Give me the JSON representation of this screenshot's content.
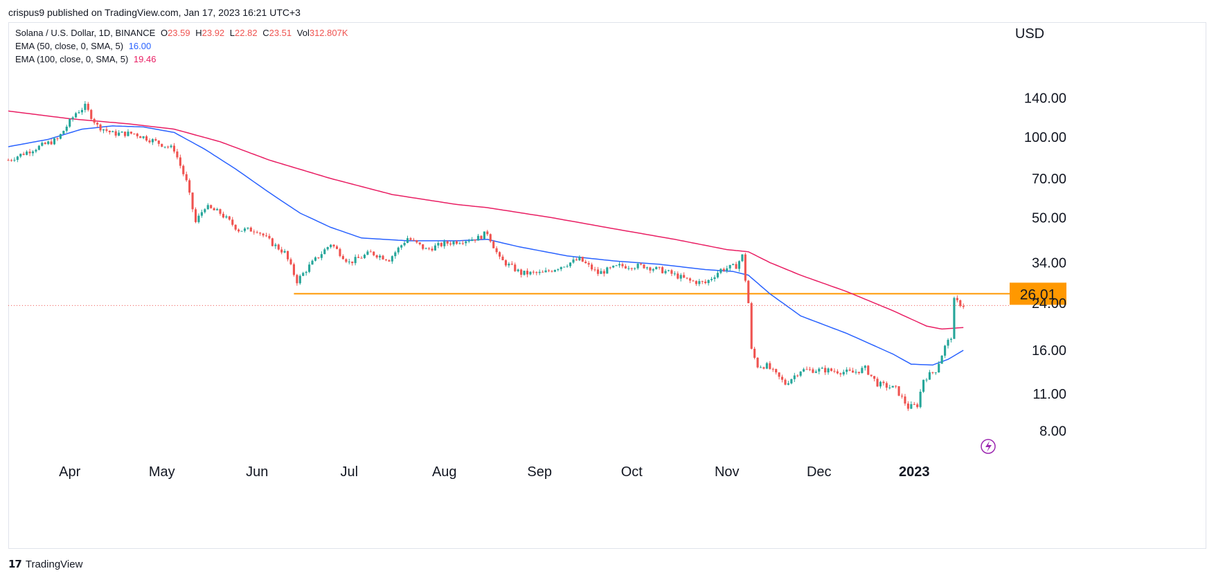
{
  "header": {
    "publisher_line": "crispus9 published on TradingView.com, Jan 17, 2023 16:21 UTC+3"
  },
  "legend": {
    "symbol": "Solana / U.S. Dollar, 1D, BINANCE",
    "o_label": "O",
    "o_value": "23.59",
    "h_label": "H",
    "h_value": "23.92",
    "l_label": "L",
    "l_value": "22.82",
    "c_label": "C",
    "c_value": "23.51",
    "vol_label": "Vol",
    "vol_value": "312.807K",
    "ema50_label": "EMA (50, close, 0, SMA, 5)",
    "ema50_value": "16.00",
    "ema100_label": "EMA (100, close, 0, SMA, 5)",
    "ema100_value": "19.46"
  },
  "footer": {
    "brand": "TradingView"
  },
  "colors": {
    "up": "#26a69a",
    "down": "#ef5350",
    "ema50": "#2962ff",
    "ema100": "#e91e63",
    "support": "#ff9800",
    "current_price_line": "#ef5350",
    "axis_text": "#131722",
    "lightning": "#9c27b0"
  },
  "chart_data": {
    "type": "candlestick",
    "currency_label": "USD",
    "y_scale": "log",
    "ylim": [
      6.8,
      190
    ],
    "y_ticks": [
      140,
      100,
      70,
      50,
      34,
      24,
      16,
      11,
      8
    ],
    "y_tick_labels": [
      "140.00",
      "100.00",
      "70.00",
      "50.00",
      "34.00",
      "24.00",
      "16.00",
      "11.00",
      "8.00"
    ],
    "x_ticks": [
      {
        "date": "2022-04-01",
        "label": "Apr"
      },
      {
        "date": "2022-05-01",
        "label": "May"
      },
      {
        "date": "2022-06-01",
        "label": "Jun"
      },
      {
        "date": "2022-07-01",
        "label": "Jul"
      },
      {
        "date": "2022-08-01",
        "label": "Aug"
      },
      {
        "date": "2022-09-01",
        "label": "Sep"
      },
      {
        "date": "2022-10-01",
        "label": "Oct"
      },
      {
        "date": "2022-11-01",
        "label": "Nov"
      },
      {
        "date": "2022-12-01",
        "label": "Dec"
      },
      {
        "date": "2023-01-01",
        "label": "2023",
        "bold": true
      }
    ],
    "xlim": [
      "2022-03-12",
      "2023-01-28"
    ],
    "support_level": {
      "value": 26.01,
      "label": "26.01",
      "start_date": "2022-06-13"
    },
    "last_close": 23.51,
    "ema50_anchors": [
      [
        "2022-03-12",
        92
      ],
      [
        "2022-03-25",
        98
      ],
      [
        "2022-04-05",
        107
      ],
      [
        "2022-04-15",
        110
      ],
      [
        "2022-04-25",
        109
      ],
      [
        "2022-05-05",
        104
      ],
      [
        "2022-05-15",
        90
      ],
      [
        "2022-05-25",
        76
      ],
      [
        "2022-06-05",
        62
      ],
      [
        "2022-06-15",
        52
      ],
      [
        "2022-06-25",
        46
      ],
      [
        "2022-07-05",
        42
      ],
      [
        "2022-07-20",
        41
      ],
      [
        "2022-08-05",
        41
      ],
      [
        "2022-08-15",
        41.5
      ],
      [
        "2022-08-25",
        39
      ],
      [
        "2022-09-10",
        36
      ],
      [
        "2022-09-25",
        34.5
      ],
      [
        "2022-10-10",
        33.5
      ],
      [
        "2022-10-25",
        32
      ],
      [
        "2022-11-03",
        31.5
      ],
      [
        "2022-11-08",
        30.5
      ],
      [
        "2022-11-15",
        26
      ],
      [
        "2022-11-25",
        21.5
      ],
      [
        "2022-12-10",
        18.5
      ],
      [
        "2022-12-25",
        15.5
      ],
      [
        "2022-12-31",
        14.2
      ],
      [
        "2023-01-07",
        14.1
      ],
      [
        "2023-01-12",
        14.8
      ],
      [
        "2023-01-17",
        16.0
      ]
    ],
    "ema100_anchors": [
      [
        "2022-03-12",
        125
      ],
      [
        "2022-04-01",
        117
      ],
      [
        "2022-04-20",
        112
      ],
      [
        "2022-05-05",
        107
      ],
      [
        "2022-05-20",
        96
      ],
      [
        "2022-06-05",
        82
      ],
      [
        "2022-06-25",
        70
      ],
      [
        "2022-07-15",
        61
      ],
      [
        "2022-08-05",
        56
      ],
      [
        "2022-08-15",
        54.5
      ],
      [
        "2022-09-05",
        50
      ],
      [
        "2022-09-25",
        45.5
      ],
      [
        "2022-10-15",
        41.5
      ],
      [
        "2022-11-01",
        38
      ],
      [
        "2022-11-08",
        37.3
      ],
      [
        "2022-11-15",
        34
      ],
      [
        "2022-11-25",
        30.5
      ],
      [
        "2022-12-10",
        26.5
      ],
      [
        "2022-12-25",
        22.5
      ],
      [
        "2023-01-05",
        19.7
      ],
      [
        "2023-01-10",
        19.2
      ],
      [
        "2023-01-17",
        19.46
      ]
    ],
    "price_anchors": [
      [
        "2022-03-12",
        82
      ],
      [
        "2022-03-20",
        90
      ],
      [
        "2022-03-28",
        98
      ],
      [
        "2022-04-03",
        123
      ],
      [
        "2022-04-06",
        130
      ],
      [
        "2022-04-10",
        110
      ],
      [
        "2022-04-15",
        103
      ],
      [
        "2022-04-22",
        103
      ],
      [
        "2022-04-28",
        97
      ],
      [
        "2022-05-05",
        90
      ],
      [
        "2022-05-09",
        68
      ],
      [
        "2022-05-12",
        48
      ],
      [
        "2022-05-15",
        55
      ],
      [
        "2022-05-20",
        52
      ],
      [
        "2022-05-26",
        45
      ],
      [
        "2022-06-01",
        45
      ],
      [
        "2022-06-06",
        40
      ],
      [
        "2022-06-10",
        37
      ],
      [
        "2022-06-14",
        29
      ],
      [
        "2022-06-18",
        33
      ],
      [
        "2022-06-25",
        40
      ],
      [
        "2022-07-01",
        34
      ],
      [
        "2022-07-08",
        37
      ],
      [
        "2022-07-14",
        35
      ],
      [
        "2022-07-20",
        42
      ],
      [
        "2022-07-26",
        38
      ],
      [
        "2022-08-01",
        40
      ],
      [
        "2022-08-06",
        41
      ],
      [
        "2022-08-12",
        42
      ],
      [
        "2022-08-15",
        44
      ],
      [
        "2022-08-19",
        35
      ],
      [
        "2022-08-26",
        31
      ],
      [
        "2022-09-02",
        31
      ],
      [
        "2022-09-08",
        33
      ],
      [
        "2022-09-14",
        35
      ],
      [
        "2022-09-20",
        31
      ],
      [
        "2022-09-27",
        33
      ],
      [
        "2022-10-05",
        33
      ],
      [
        "2022-10-12",
        31.5
      ],
      [
        "2022-10-20",
        29
      ],
      [
        "2022-10-25",
        28.5
      ],
      [
        "2022-10-30",
        32
      ],
      [
        "2022-11-04",
        33
      ],
      [
        "2022-11-06",
        36
      ],
      [
        "2022-11-08",
        24
      ],
      [
        "2022-11-09",
        16
      ],
      [
        "2022-11-11",
        14
      ],
      [
        "2022-11-14",
        14
      ],
      [
        "2022-11-20",
        12
      ],
      [
        "2022-11-25",
        13.5
      ],
      [
        "2022-12-03",
        13.5
      ],
      [
        "2022-12-12",
        13.2
      ],
      [
        "2022-12-16",
        13.7
      ],
      [
        "2022-12-20",
        12
      ],
      [
        "2022-12-26",
        11.5
      ],
      [
        "2022-12-30",
        9.8
      ],
      [
        "2023-01-02",
        10
      ],
      [
        "2023-01-04",
        12.5
      ],
      [
        "2023-01-08",
        13.5
      ],
      [
        "2023-01-11",
        16.5
      ],
      [
        "2023-01-13",
        18
      ],
      [
        "2023-01-14",
        24.5
      ],
      [
        "2023-01-17",
        23.51
      ]
    ]
  }
}
